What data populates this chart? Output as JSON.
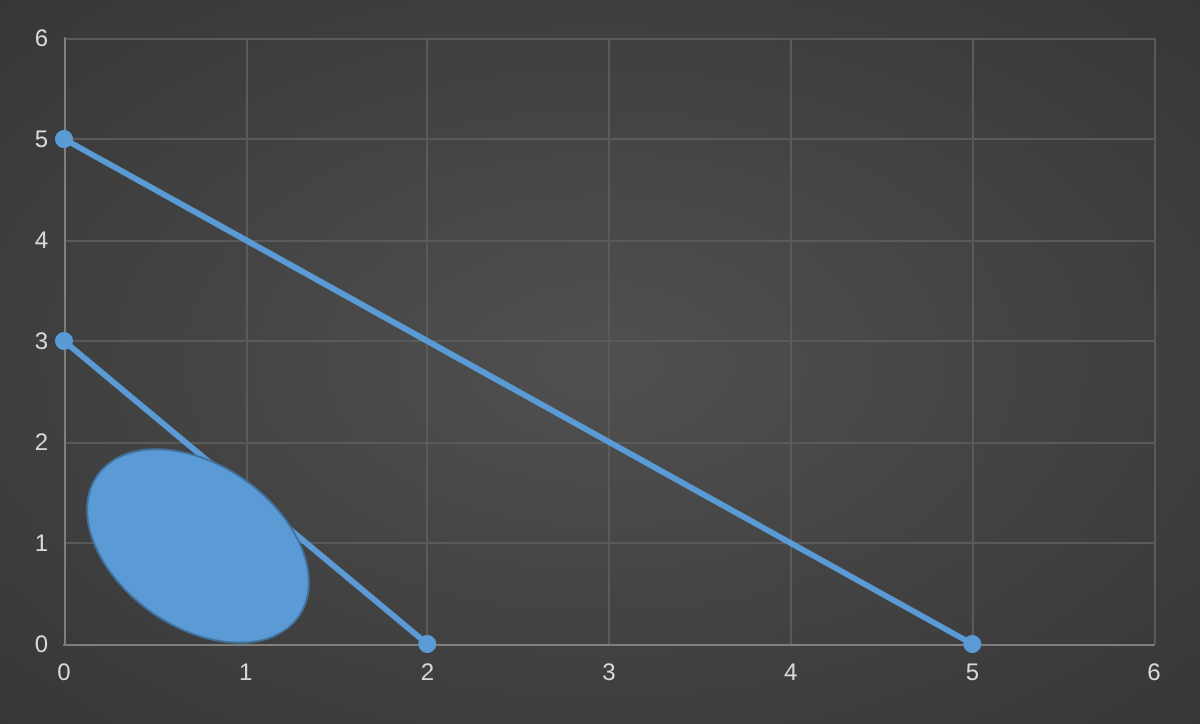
{
  "chart_data": {
    "type": "line",
    "series": [
      {
        "color": "#5b9bd5",
        "x": [
          0,
          5
        ],
        "values": [
          5,
          0
        ]
      },
      {
        "color": "#5b9bd5",
        "x": [
          0,
          2
        ],
        "values": [
          3,
          0
        ]
      }
    ],
    "xlim": [
      0,
      6
    ],
    "xticks": [
      0,
      1,
      2,
      3,
      4,
      5,
      6
    ],
    "ylim": [
      0,
      6
    ],
    "yticks": [
      0,
      1,
      2,
      3,
      4,
      5,
      6
    ],
    "grid": true,
    "marker": "circle",
    "line_style": "solid"
  }
}
